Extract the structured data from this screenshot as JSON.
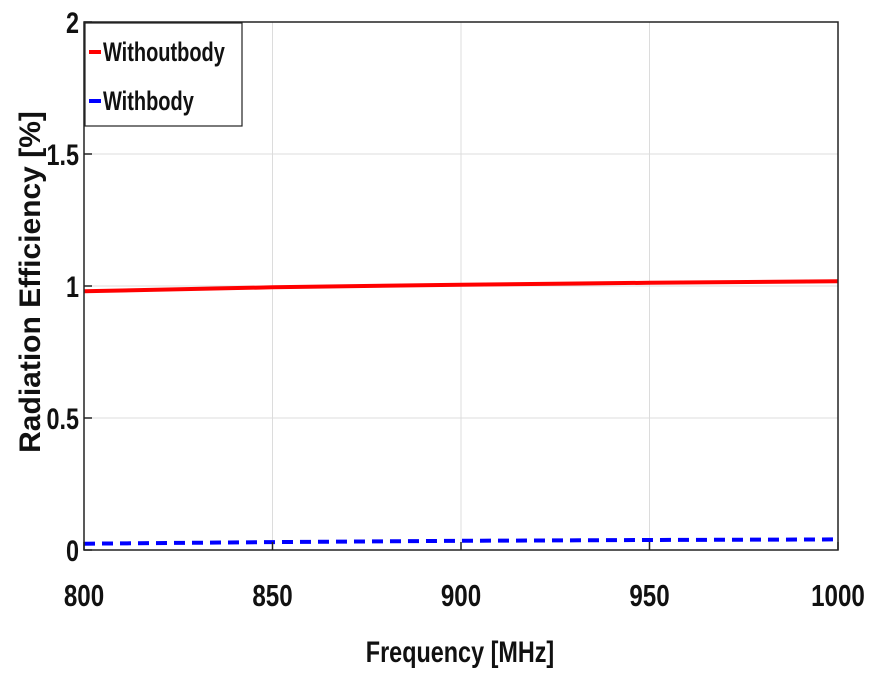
{
  "chart_data": {
    "type": "line",
    "xlabel": "Frequency [MHz]",
    "ylabel": "Radiation Efficiency [%]",
    "xlim": [
      800,
      1000
    ],
    "ylim": [
      0,
      2
    ],
    "xticks": [
      800,
      850,
      900,
      950,
      1000
    ],
    "yticks": [
      0,
      0.5,
      1,
      1.5,
      2
    ],
    "ytick_labels": [
      "0",
      "0.5",
      "1",
      "1.5",
      "2"
    ],
    "grid": true,
    "legend_position": "top-left",
    "series": [
      {
        "name": "Withoutbody",
        "color": "#ff0000",
        "style": "solid",
        "x": [
          800,
          850,
          900,
          950,
          1000
        ],
        "y": [
          0.98,
          0.995,
          1.005,
          1.012,
          1.018
        ]
      },
      {
        "name": "Withbody",
        "color": "#0000ff",
        "style": "dashed",
        "x": [
          800,
          850,
          900,
          950,
          1000
        ],
        "y": [
          0.024,
          0.03,
          0.035,
          0.038,
          0.04
        ]
      }
    ]
  }
}
